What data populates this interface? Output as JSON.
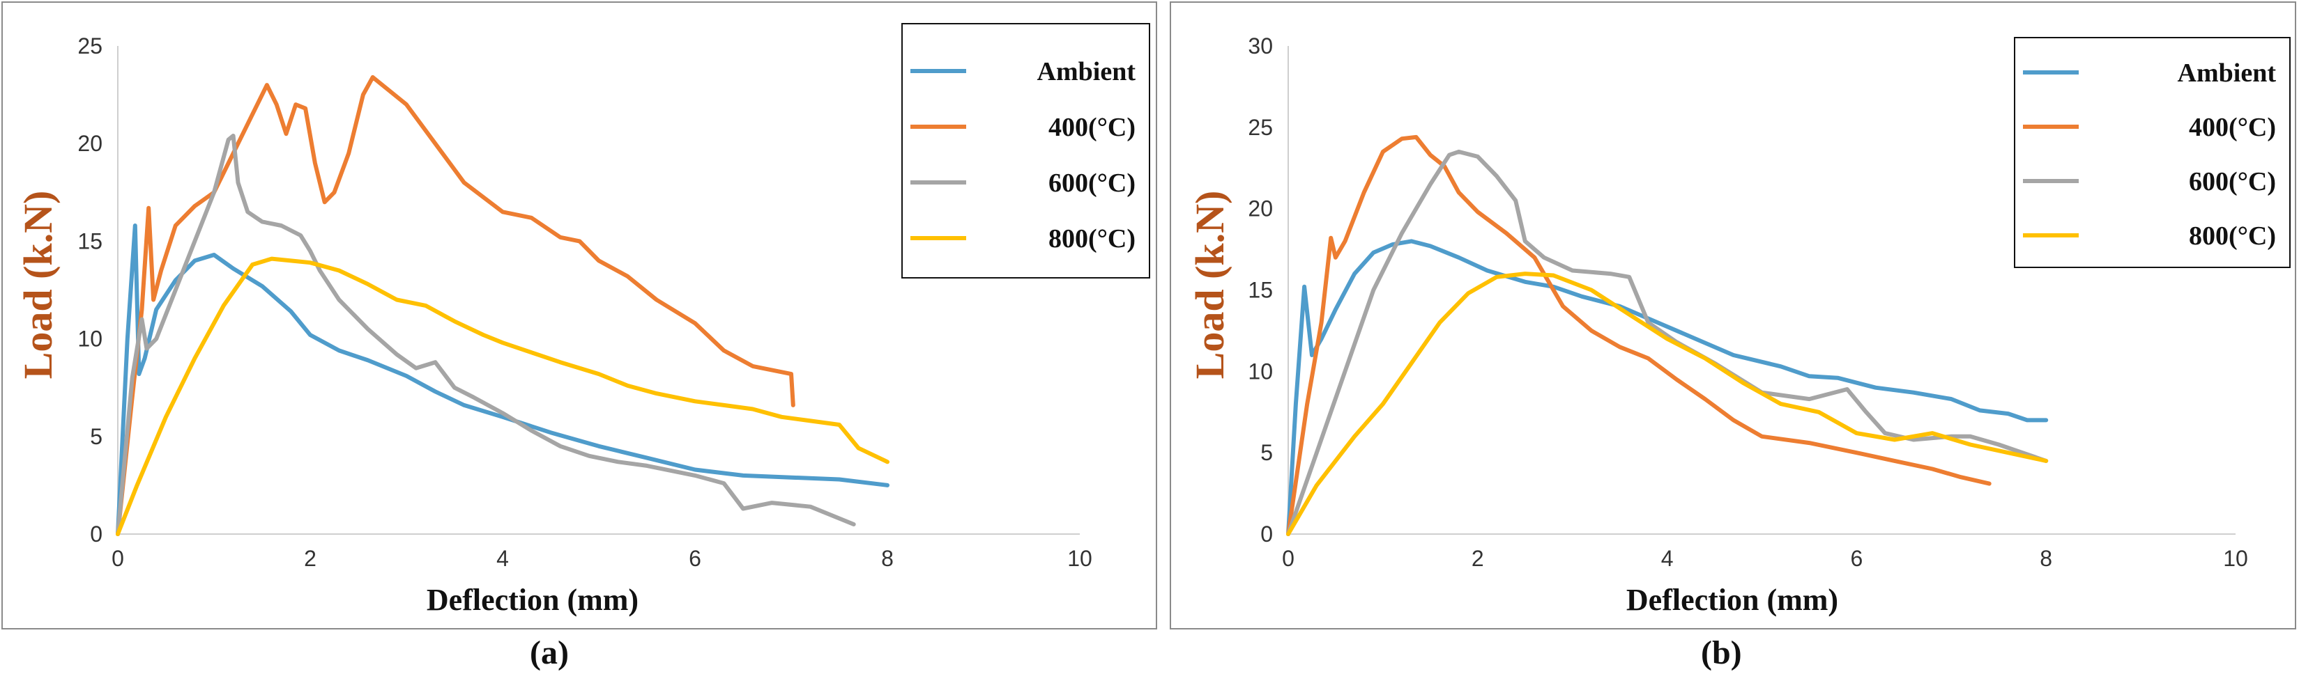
{
  "captions": [
    "(a)",
    "(b)"
  ],
  "chart_data": [
    {
      "type": "line",
      "title": "",
      "xlabel": "Deflection (mm)",
      "ylabel": "Load (k.N)",
      "xlim": [
        0,
        10
      ],
      "ylim": [
        0,
        25
      ],
      "xticks": [
        "0",
        "2",
        "4",
        "6",
        "8",
        "10"
      ],
      "yticks": [
        "0",
        "5",
        "10",
        "15",
        "20",
        "25"
      ],
      "legend": "top-right",
      "series": [
        {
          "name": "Ambient",
          "color": "#4f9ccb",
          "x": [
            0,
            0.1,
            0.18,
            0.22,
            0.28,
            0.4,
            0.6,
            0.8,
            1.0,
            1.2,
            1.5,
            1.8,
            2.0,
            2.3,
            2.6,
            3.0,
            3.3,
            3.6,
            4.0,
            4.5,
            5.0,
            5.5,
            6.0,
            6.5,
            7.0,
            7.5,
            8.0
          ],
          "y": [
            0,
            10,
            15.8,
            8.2,
            9.0,
            11.5,
            13.0,
            14.0,
            14.3,
            13.6,
            12.7,
            11.4,
            10.2,
            9.4,
            8.9,
            8.1,
            7.3,
            6.6,
            6.0,
            5.2,
            4.5,
            3.9,
            3.3,
            3.0,
            2.9,
            2.8,
            2.5
          ]
        },
        {
          "name": "400(°C)",
          "color": "#ed7d31",
          "x": [
            0,
            0.15,
            0.25,
            0.32,
            0.37,
            0.45,
            0.6,
            0.8,
            1.0,
            1.2,
            1.4,
            1.55,
            1.65,
            1.75,
            1.85,
            1.95,
            2.05,
            2.15,
            2.25,
            2.4,
            2.55,
            2.65,
            2.8,
            3.0,
            3.3,
            3.6,
            4.0,
            4.3,
            4.6,
            4.8,
            5.0,
            5.3,
            5.6,
            6.0,
            6.3,
            6.6,
            7.0,
            7.02
          ],
          "y": [
            0,
            7,
            11.5,
            16.7,
            12.0,
            13.5,
            15.8,
            16.8,
            17.5,
            19.5,
            21.5,
            23.0,
            22.0,
            20.5,
            22.0,
            21.8,
            19.0,
            17.0,
            17.5,
            19.5,
            22.5,
            23.4,
            22.8,
            22.0,
            20.0,
            18.0,
            16.5,
            16.2,
            15.2,
            15.0,
            14.0,
            13.2,
            12.0,
            10.8,
            9.4,
            8.6,
            8.2,
            6.6
          ]
        },
        {
          "name": "600(°C)",
          "color": "#a5a5a5",
          "x": [
            0,
            0.15,
            0.25,
            0.3,
            0.4,
            0.6,
            0.8,
            1.0,
            1.15,
            1.2,
            1.25,
            1.35,
            1.5,
            1.7,
            1.9,
            2.0,
            2.1,
            2.3,
            2.6,
            2.9,
            3.1,
            3.3,
            3.5,
            3.7,
            4.0,
            4.3,
            4.6,
            4.9,
            5.2,
            5.5,
            6.0,
            6.3,
            6.5,
            6.8,
            7.2,
            7.65
          ],
          "y": [
            0,
            8,
            11,
            9.5,
            10.0,
            12.5,
            15.0,
            17.5,
            20.2,
            20.4,
            18.0,
            16.5,
            16.0,
            15.8,
            15.3,
            14.5,
            13.5,
            12.0,
            10.5,
            9.2,
            8.5,
            8.8,
            7.5,
            7.0,
            6.2,
            5.3,
            4.5,
            4.0,
            3.7,
            3.5,
            3.0,
            2.6,
            1.3,
            1.6,
            1.4,
            0.5
          ]
        },
        {
          "name": "800(°C)",
          "color": "#ffc000",
          "x": [
            0,
            0.2,
            0.5,
            0.8,
            1.1,
            1.4,
            1.6,
            1.8,
            2.0,
            2.3,
            2.6,
            2.9,
            3.2,
            3.5,
            3.8,
            4.0,
            4.3,
            4.6,
            5.0,
            5.3,
            5.6,
            6.0,
            6.3,
            6.6,
            6.9,
            7.2,
            7.5,
            7.7,
            8.0
          ],
          "y": [
            0,
            2.5,
            6.0,
            9.0,
            11.7,
            13.8,
            14.1,
            14.0,
            13.9,
            13.5,
            12.8,
            12.0,
            11.7,
            10.9,
            10.2,
            9.8,
            9.3,
            8.8,
            8.2,
            7.6,
            7.2,
            6.8,
            6.6,
            6.4,
            6.0,
            5.8,
            5.6,
            4.4,
            3.7
          ]
        }
      ]
    },
    {
      "type": "line",
      "title": "",
      "xlabel": "Deflection (mm)",
      "ylabel": "Load (k.N)",
      "xlim": [
        0,
        10
      ],
      "ylim": [
        0,
        30
      ],
      "xticks": [
        "0",
        "2",
        "4",
        "6",
        "8",
        "10"
      ],
      "yticks": [
        "0",
        "5",
        "10",
        "15",
        "20",
        "25",
        "30"
      ],
      "legend": "top-right",
      "series": [
        {
          "name": "Ambient",
          "color": "#4f9ccb",
          "x": [
            0,
            0.08,
            0.17,
            0.25,
            0.35,
            0.5,
            0.7,
            0.9,
            1.1,
            1.3,
            1.5,
            1.8,
            2.1,
            2.5,
            2.8,
            3.1,
            3.5,
            3.9,
            4.3,
            4.7,
            5.2,
            5.5,
            5.8,
            6.2,
            6.6,
            7.0,
            7.3,
            7.6,
            7.8,
            8.0
          ],
          "y": [
            0,
            8,
            15.2,
            11.0,
            12.0,
            13.8,
            16.0,
            17.3,
            17.8,
            18.0,
            17.7,
            17.0,
            16.2,
            15.5,
            15.2,
            14.6,
            14.0,
            13.0,
            12.0,
            11.0,
            10.3,
            9.7,
            9.6,
            9.0,
            8.7,
            8.3,
            7.6,
            7.4,
            7.0,
            7.0
          ]
        },
        {
          "name": "400(°C)",
          "color": "#ed7d31",
          "x": [
            0,
            0.2,
            0.35,
            0.45,
            0.5,
            0.6,
            0.8,
            1.0,
            1.2,
            1.35,
            1.5,
            1.65,
            1.8,
            2.0,
            2.3,
            2.6,
            2.9,
            3.2,
            3.5,
            3.8,
            4.1,
            4.4,
            4.7,
            5.0,
            5.5,
            6.0,
            6.4,
            6.8,
            7.1,
            7.4
          ],
          "y": [
            0,
            8,
            13.0,
            18.2,
            17.0,
            18.0,
            21.0,
            23.5,
            24.3,
            24.4,
            23.3,
            22.6,
            21.0,
            19.8,
            18.5,
            17.0,
            14.0,
            12.5,
            11.5,
            10.8,
            9.5,
            8.3,
            7.0,
            6.0,
            5.6,
            5.0,
            4.5,
            4.0,
            3.5,
            3.1
          ]
        },
        {
          "name": "600(°C)",
          "color": "#a5a5a5",
          "x": [
            0,
            0.3,
            0.6,
            0.9,
            1.2,
            1.5,
            1.7,
            1.8,
            2.0,
            2.2,
            2.4,
            2.5,
            2.7,
            3.0,
            3.4,
            3.6,
            3.8,
            4.1,
            4.5,
            5.0,
            5.5,
            5.9,
            6.1,
            6.3,
            6.6,
            7.0,
            7.2,
            7.5,
            8.0
          ],
          "y": [
            0,
            5,
            10.0,
            15.0,
            18.5,
            21.5,
            23.3,
            23.5,
            23.2,
            22.0,
            20.5,
            18.0,
            17.0,
            16.2,
            16.0,
            15.8,
            13.0,
            11.8,
            10.5,
            8.7,
            8.3,
            8.9,
            7.5,
            6.2,
            5.8,
            6.0,
            6.0,
            5.5,
            4.5
          ]
        },
        {
          "name": "800(°C)",
          "color": "#ffc000",
          "x": [
            0,
            0.3,
            0.7,
            1.0,
            1.3,
            1.6,
            1.9,
            2.2,
            2.5,
            2.8,
            3.2,
            3.6,
            4.0,
            4.4,
            4.8,
            5.2,
            5.6,
            6.0,
            6.4,
            6.8,
            7.2,
            7.6,
            8.0
          ],
          "y": [
            0,
            3,
            6.0,
            8.0,
            10.5,
            13.0,
            14.8,
            15.8,
            16.0,
            15.9,
            15.0,
            13.5,
            12.0,
            10.8,
            9.3,
            8.0,
            7.5,
            6.2,
            5.8,
            6.2,
            5.5,
            5.0,
            4.5
          ]
        }
      ]
    }
  ]
}
